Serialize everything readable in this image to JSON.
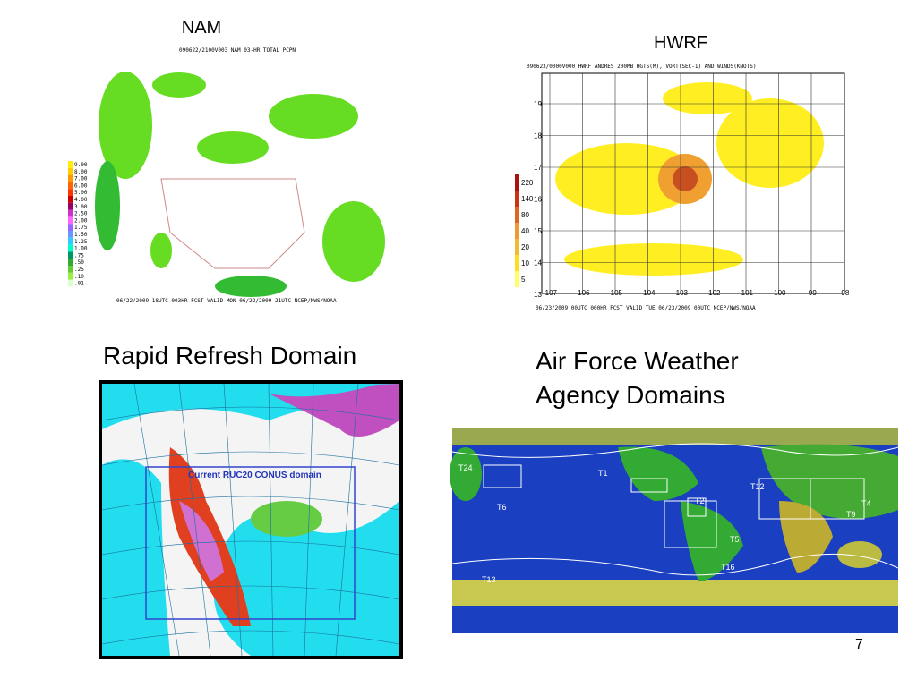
{
  "slide": {
    "page_number": "7",
    "nam": {
      "title": "NAM",
      "image_header": "090622/2100V003 NAM 03-HR TOTAL PCPN",
      "image_footer": "06/22/2009 18UTC 003HR FCST VALID MON 06/22/2009 21UTC  NCEP/NWS/NOAA",
      "legend": [
        "9.00",
        "8.00",
        "7.00",
        "6.00",
        "5.00",
        "4.00",
        "3.00",
        "2.50",
        "2.00",
        "1.75",
        "1.50",
        "1.25",
        "1.00",
        ".75",
        ".50",
        ".25",
        ".10",
        ".01"
      ]
    },
    "hwrf": {
      "title": "HWRF",
      "image_header": "090623/0000V000 HWRF ANDRES  200MB HGTS(M), VORT(SEC-1) AND WINDS(KNOTS)",
      "image_footer": "06/23/2009 00UTC 000HR FCST VALID TUE 06/23/2009 00UTC  NCEP/NWS/NOAA",
      "y_labels": [
        "19",
        "18",
        "17",
        "16",
        "15",
        "14",
        "13"
      ],
      "x_labels": [
        "-107",
        "-106",
        "-105",
        "-104",
        "-103",
        "-102",
        "-101",
        "-100",
        "-99",
        "-98"
      ],
      "legend": [
        "220",
        "140",
        "80",
        "40",
        "20",
        "10",
        "5"
      ]
    },
    "rapid_refresh": {
      "title": "Rapid Refresh Domain",
      "box_label": "Current RUC20 CONUS domain"
    },
    "afwa": {
      "title_lines": [
        "Air Force Weather",
        "Agency Domains"
      ],
      "domain_labels": [
        "T24",
        "T1",
        "T12",
        "T6",
        "T2",
        "T5",
        "T16",
        "T13",
        "T9",
        "T4"
      ]
    }
  }
}
